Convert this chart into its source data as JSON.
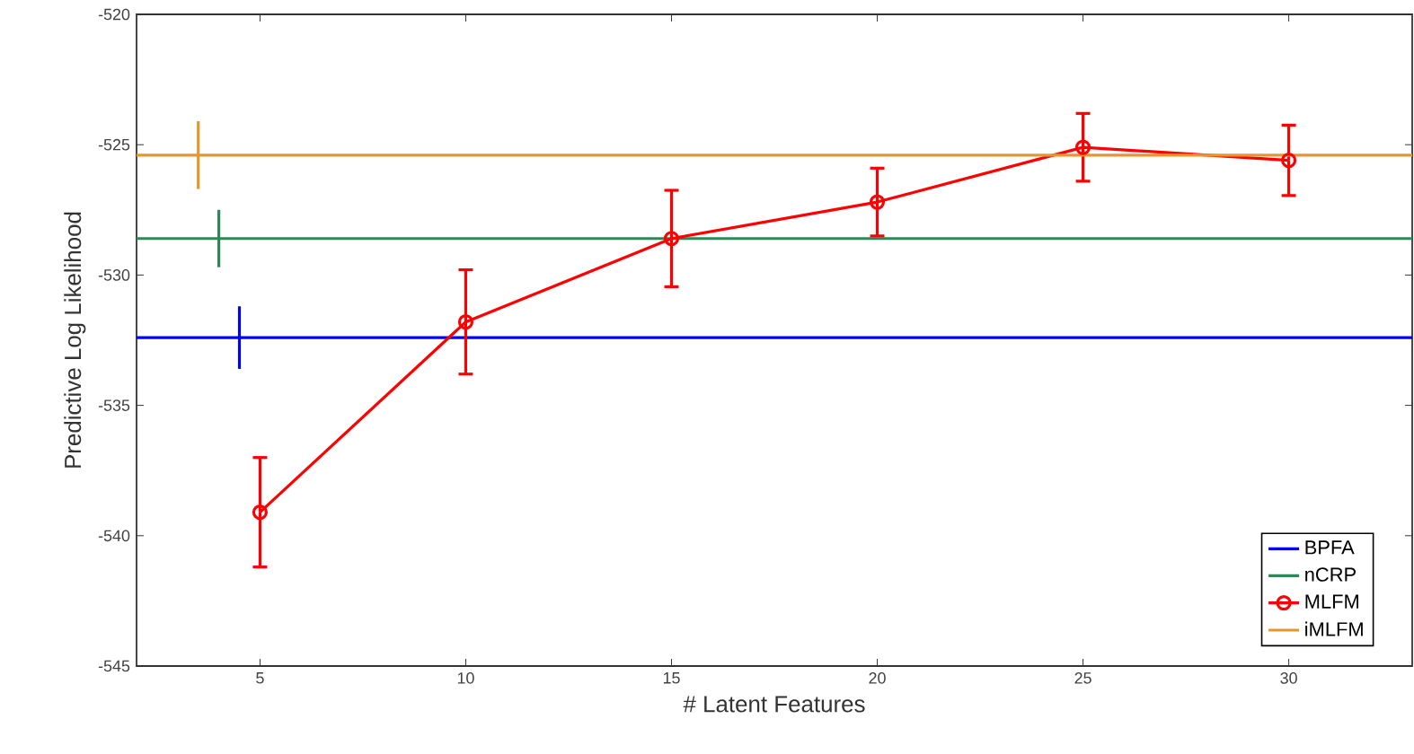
{
  "chart_data": {
    "type": "line",
    "xlabel": "# Latent Features",
    "ylabel": "Predictive Log Likelihood",
    "xlim": [
      2,
      33
    ],
    "xticks": [
      5,
      10,
      15,
      20,
      25,
      30
    ],
    "ylim": [
      -545,
      -520
    ],
    "yticks": [
      -545,
      -540,
      -535,
      -530,
      -525,
      -520
    ],
    "grid": false,
    "legend": "bottom right",
    "series": [
      {
        "name": "BPFA",
        "color": "#0000ff",
        "x": [
          2,
          4.5,
          33
        ],
        "values": [
          -532.4,
          -532.4,
          -532.4
        ],
        "errors": [
          null,
          1.2,
          null
        ],
        "marker": "none"
      },
      {
        "name": "nCRP",
        "color": "#2e8757",
        "x": [
          2,
          4,
          33
        ],
        "values": [
          -528.6,
          -528.6,
          -528.6
        ],
        "errors": [
          null,
          1.1,
          null
        ],
        "marker": "none"
      },
      {
        "name": "MLFM",
        "color": "#ff0000",
        "x": [
          5,
          10,
          15,
          20,
          25,
          30
        ],
        "values": [
          -539.1,
          -531.8,
          -528.6,
          -527.2,
          -525.1,
          -525.6
        ],
        "errors": [
          2.1,
          2.0,
          1.85,
          1.3,
          1.3,
          1.35
        ],
        "marker": "circle"
      },
      {
        "name": "iMLFM",
        "color": "#e8962a",
        "x": [
          2,
          3.5,
          33
        ],
        "values": [
          -525.4,
          -525.4,
          -525.4
        ],
        "errors": [
          null,
          1.3,
          null
        ],
        "marker": "none"
      }
    ]
  }
}
